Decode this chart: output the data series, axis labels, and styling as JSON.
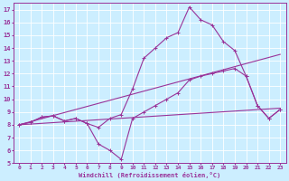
{
  "xlabel": "Windchill (Refroidissement éolien,°C)",
  "bg_color": "#cceeff",
  "grid_color": "#ffffff",
  "line_color": "#993399",
  "xlim": [
    -0.5,
    23.5
  ],
  "ylim": [
    5,
    17.5
  ],
  "xticks": [
    0,
    1,
    2,
    3,
    4,
    5,
    6,
    7,
    8,
    9,
    10,
    11,
    12,
    13,
    14,
    15,
    16,
    17,
    18,
    19,
    20,
    21,
    22,
    23
  ],
  "yticks": [
    5,
    6,
    7,
    8,
    9,
    10,
    11,
    12,
    13,
    14,
    15,
    16,
    17
  ],
  "line1_x": [
    0,
    1,
    2,
    3,
    4,
    5,
    6,
    7,
    8,
    9,
    10,
    11,
    12,
    13,
    14,
    15,
    16,
    17,
    18,
    19,
    20,
    21,
    22,
    23
  ],
  "line1_y": [
    8.0,
    8.2,
    8.6,
    8.7,
    8.3,
    8.5,
    8.1,
    7.8,
    8.5,
    8.8,
    10.8,
    13.2,
    14.0,
    14.8,
    15.2,
    17.2,
    16.2,
    15.8,
    14.5,
    13.8,
    11.8,
    9.5,
    8.5,
    9.2
  ],
  "line2_x": [
    0,
    23
  ],
  "line2_y": [
    8.0,
    9.3
  ],
  "line3_x": [
    0,
    1,
    2,
    3,
    4,
    5,
    6,
    7,
    8,
    9,
    10,
    11,
    12,
    13,
    14,
    15,
    16,
    17,
    18,
    19,
    20,
    21,
    22,
    23
  ],
  "line3_y": [
    8.0,
    8.2,
    8.6,
    8.7,
    8.3,
    8.5,
    8.1,
    6.5,
    6.0,
    5.3,
    8.5,
    9.0,
    9.5,
    10.0,
    10.5,
    11.5,
    11.8,
    12.0,
    12.2,
    12.4,
    11.8,
    9.5,
    8.5,
    9.2
  ],
  "line4_x": [
    0,
    23
  ],
  "line4_y": [
    8.0,
    13.5
  ],
  "marker_size": 3,
  "line_width": 0.8
}
